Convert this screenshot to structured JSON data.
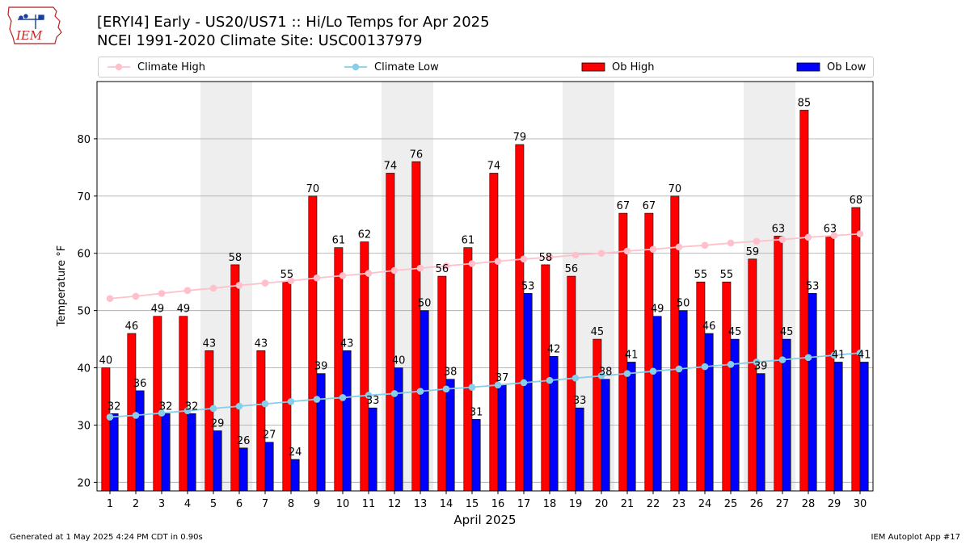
{
  "logo": {
    "text": "IEM",
    "icon": "iowa-state-outline-icon"
  },
  "title_line1": "[ERYI4] Early - US20/US71 :: Hi/Lo Temps for Apr 2025",
  "title_line2": "NCEI 1991-2020 Climate Site: USC00137979",
  "footer_left": "Generated at 1 May 2025 4:24 PM CDT in 0.90s",
  "footer_right": "IEM Autoplot App #17",
  "colors": {
    "ob_high": "#ff0000",
    "ob_low": "#0000ff",
    "climate_high": "#ffc0cb",
    "climate_low": "#87ceeb",
    "weekend_shade": "#eeeeee",
    "grid": "#b0b0b0"
  },
  "chart_data": {
    "type": "bar",
    "xlabel": "April 2025",
    "ylabel": "Temperature °F",
    "ylim": [
      18.5,
      90
    ],
    "yticks": [
      20,
      30,
      40,
      50,
      60,
      70,
      80
    ],
    "grid": "horizontal",
    "legend_position": "top",
    "categories": [
      "1",
      "2",
      "3",
      "4",
      "5",
      "6",
      "7",
      "8",
      "9",
      "10",
      "11",
      "12",
      "13",
      "14",
      "15",
      "16",
      "17",
      "18",
      "19",
      "20",
      "21",
      "22",
      "23",
      "24",
      "25",
      "26",
      "27",
      "28",
      "29",
      "30"
    ],
    "shaded_days": [
      5,
      6,
      12,
      13,
      19,
      20,
      26,
      27
    ],
    "series": [
      {
        "name": "Ob High",
        "kind": "bar",
        "values": [
          40,
          46,
          49,
          49,
          43,
          58,
          43,
          55,
          70,
          61,
          62,
          74,
          76,
          56,
          61,
          74,
          79,
          58,
          56,
          45,
          67,
          67,
          70,
          55,
          55,
          59,
          63,
          85,
          63,
          68
        ]
      },
      {
        "name": "Ob Low",
        "kind": "bar",
        "values": [
          32,
          36,
          32,
          32,
          29,
          26,
          27,
          24,
          39,
          43,
          33,
          40,
          50,
          38,
          31,
          37,
          53,
          42,
          33,
          38,
          41,
          49,
          50,
          46,
          45,
          39,
          45,
          53,
          41,
          41
        ]
      },
      {
        "name": "Climate High",
        "kind": "line",
        "values": [
          52.1,
          52.5,
          53.0,
          53.5,
          53.9,
          54.4,
          54.8,
          55.2,
          55.7,
          56.1,
          56.5,
          57.0,
          57.4,
          57.8,
          58.2,
          58.6,
          59.0,
          59.3,
          59.7,
          60.0,
          60.4,
          60.7,
          61.1,
          61.4,
          61.8,
          62.1,
          62.4,
          62.8,
          63.1,
          63.4
        ]
      },
      {
        "name": "Climate Low",
        "kind": "line",
        "values": [
          31.4,
          31.7,
          32.1,
          32.5,
          32.9,
          33.3,
          33.7,
          34.1,
          34.5,
          34.8,
          35.2,
          35.5,
          35.9,
          36.3,
          36.6,
          37.0,
          37.4,
          37.8,
          38.2,
          38.6,
          39.0,
          39.4,
          39.8,
          40.2,
          40.6,
          41.0,
          41.4,
          41.8,
          42.2,
          42.6
        ]
      }
    ]
  }
}
